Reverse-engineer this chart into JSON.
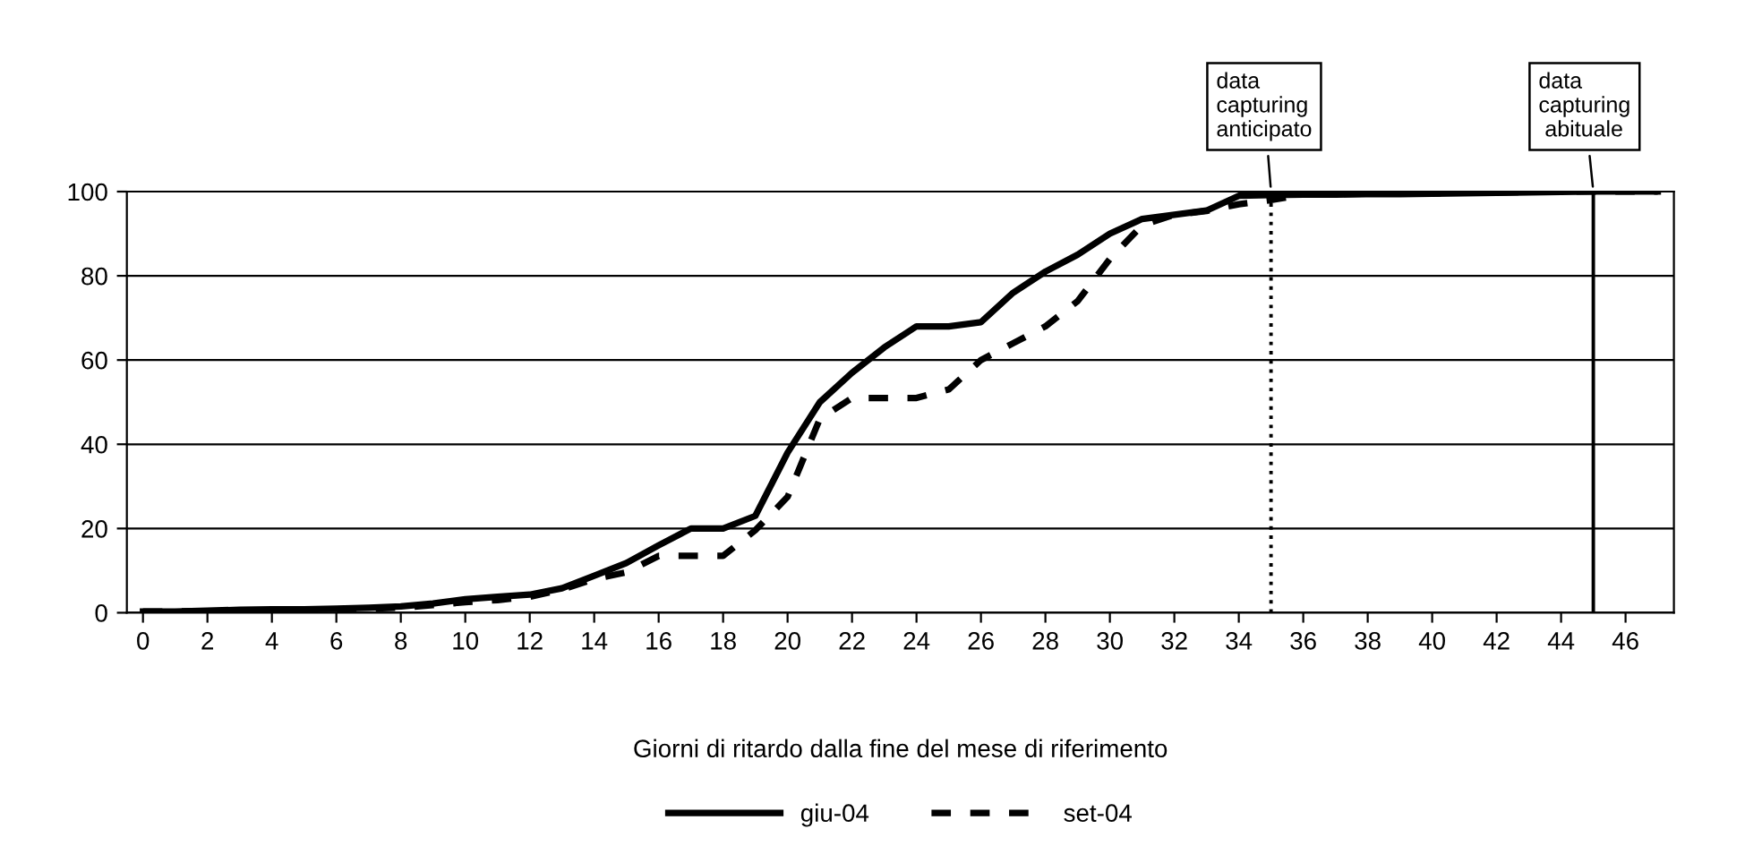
{
  "chart_data": {
    "type": "line",
    "xlabel": "Giorni di ritardo dalla fine del mese di riferimento",
    "x": [
      0,
      1,
      2,
      3,
      4,
      5,
      6,
      7,
      8,
      9,
      10,
      11,
      12,
      13,
      14,
      15,
      16,
      17,
      18,
      19,
      20,
      21,
      22,
      23,
      24,
      25,
      26,
      27,
      28,
      29,
      30,
      31,
      32,
      33,
      34,
      35,
      36,
      37,
      38,
      39,
      40,
      41,
      42,
      43,
      44,
      45,
      46,
      47
    ],
    "series": [
      {
        "name": "giu-04",
        "color": "#000000",
        "line_style": "solid",
        "values": [
          0.3,
          0.3,
          0.5,
          0.7,
          0.8,
          0.8,
          1,
          1.2,
          1.5,
          2.2,
          3.2,
          3.8,
          4.3,
          5.8,
          8.8,
          11.8,
          16,
          20,
          20,
          23,
          38,
          50,
          57,
          63,
          68,
          68,
          69,
          76,
          81,
          85,
          90,
          93.5,
          94.5,
          95.5,
          99,
          99.2,
          99.3,
          99.3,
          99.4,
          99.4,
          99.5,
          99.6,
          99.7,
          99.8,
          99.9,
          100,
          100,
          100
        ]
      },
      {
        "name": "set-04",
        "color": "#000000",
        "line_style": "dashed",
        "values": [
          0.3,
          0.3,
          0.4,
          0.5,
          0.6,
          0.7,
          0.8,
          1,
          1.2,
          1.8,
          2.5,
          3,
          3.8,
          5.5,
          8,
          9.6,
          13.5,
          13.5,
          13.5,
          19.6,
          27.5,
          46,
          51,
          51,
          51,
          53,
          60,
          64,
          68,
          74,
          84,
          92,
          94.5,
          95.4,
          97,
          98,
          99.3,
          99.4,
          99.5,
          99.5,
          99.6,
          99.7,
          99.8,
          99.9,
          100,
          100,
          100,
          100
        ]
      }
    ],
    "xlim": [
      -0.5,
      47.5
    ],
    "xticks": [
      0,
      2,
      4,
      6,
      8,
      10,
      12,
      14,
      16,
      18,
      20,
      22,
      24,
      26,
      28,
      30,
      32,
      34,
      36,
      38,
      40,
      42,
      44,
      46
    ],
    "ylim": [
      0,
      100
    ],
    "yticks": [
      0,
      20,
      40,
      60,
      80,
      100
    ],
    "grid": "y",
    "legend": "bottom",
    "marker": "none",
    "ref_lines": [
      {
        "axis": "x",
        "value": 35,
        "line_style": "dotted",
        "color": "#000000"
      },
      {
        "axis": "x",
        "value": 45,
        "line_style": "solid",
        "color": "#000000"
      }
    ],
    "annotations": [
      {
        "text": "data\ncapturing\nanticipato",
        "x": 35,
        "y": 100
      },
      {
        "text": "data\ncapturing\n abituale",
        "x": 45,
        "y": 100
      }
    ]
  }
}
